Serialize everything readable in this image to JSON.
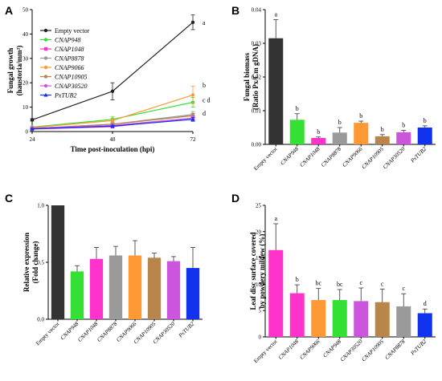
{
  "chart_data": [
    {
      "panel": "A",
      "type": "line",
      "xlabel": "Time post-inoculation (hpi)",
      "ylabel_lines": [
        "Fungal growth",
        "(haustoria/mm²)"
      ],
      "x": [
        24,
        48,
        72
      ],
      "x_ticks": [
        "24",
        "48",
        "72"
      ],
      "ylim": [
        0,
        50
      ],
      "y_ticks": [
        0,
        10,
        20,
        30,
        40,
        50
      ],
      "legend_position": "top-left",
      "series": [
        {
          "name": "Empty vector",
          "color": "#222222",
          "marker": "circle",
          "values": [
            4.8,
            16.5,
            44.8
          ],
          "errors": [
            0.5,
            3.5,
            3.0
          ],
          "italic": false
        },
        {
          "name": "CNAP948",
          "color": "#33e033",
          "marker": "circle",
          "values": [
            1.8,
            5.0,
            12.0
          ],
          "errors": [
            0.3,
            1.0,
            2.0
          ],
          "italic": true
        },
        {
          "name": "CNAP1048",
          "color": "#ff33cc",
          "marker": "square",
          "values": [
            1.0,
            2.0,
            5.5
          ],
          "errors": [
            0.2,
            0.4,
            0.8
          ],
          "italic": true
        },
        {
          "name": "CNAP8878",
          "color": "#9a9a9a",
          "marker": "circle",
          "values": [
            1.3,
            3.0,
            7.0
          ],
          "errors": [
            0.2,
            0.5,
            1.2
          ],
          "italic": true
        },
        {
          "name": "CNAP9066",
          "color": "#ff9933",
          "marker": "circle",
          "values": [
            1.6,
            4.5,
            15.0
          ],
          "errors": [
            0.3,
            0.8,
            3.5
          ],
          "italic": true
        },
        {
          "name": "CNAP10905",
          "color": "#b8864b",
          "marker": "circle",
          "values": [
            1.2,
            3.0,
            6.5
          ],
          "errors": [
            0.2,
            0.5,
            1.0
          ],
          "italic": true
        },
        {
          "name": "CNAP30520",
          "color": "#cc55dd",
          "marker": "circle",
          "values": [
            1.4,
            2.5,
            5.5
          ],
          "errors": [
            0.2,
            0.5,
            1.0
          ],
          "italic": true
        },
        {
          "name": "PxTUB2",
          "color": "#1133ee",
          "marker": "triangle",
          "values": [
            1.1,
            2.2,
            5.0
          ],
          "errors": [
            0.2,
            0.4,
            0.8
          ],
          "italic": true
        }
      ],
      "significance": [
        {
          "label": "a",
          "x": 72,
          "y": 44.8
        },
        {
          "label": "b",
          "x": 72,
          "y": 19.0
        },
        {
          "label": "c d",
          "x": 72,
          "y": 13.0
        },
        {
          "label": "d",
          "x": 72,
          "y": 7.5
        }
      ]
    },
    {
      "panel": "B",
      "type": "bar",
      "ylabel_lines": [
        "Fungal biomass",
        "(Ratio Px/Cm gDNA)"
      ],
      "ylim": [
        0,
        0.04
      ],
      "y_ticks": [
        "0.00",
        "0.01",
        "0.02",
        "0.03",
        "0.04"
      ],
      "categories": [
        "Empty vector",
        "CNAP948",
        "CNAP1048",
        "CNAP8878",
        "CNAP9066",
        "CNAP10905",
        "CNAP30520",
        "PxTUB2"
      ],
      "italic": [
        false,
        true,
        true,
        true,
        true,
        true,
        true,
        true
      ],
      "values": [
        0.0315,
        0.0073,
        0.0019,
        0.0035,
        0.0064,
        0.0024,
        0.0036,
        0.005
      ],
      "errors": [
        0.0055,
        0.0018,
        0.0003,
        0.0015,
        0.0005,
        0.0005,
        0.0006,
        0.0005
      ],
      "colors": [
        "#333333",
        "#33e033",
        "#ff33cc",
        "#9a9a9a",
        "#ff9933",
        "#b8864b",
        "#cc55dd",
        "#1133ee"
      ],
      "significance": [
        "a",
        "b",
        "b",
        "b",
        "b",
        "b",
        "b",
        "b"
      ]
    },
    {
      "panel": "C",
      "type": "bar",
      "ylabel_lines": [
        "Relative expression",
        "(Fold change)"
      ],
      "ylim": [
        0,
        1.0
      ],
      "y_ticks": [
        "0.0",
        "0.5",
        "1.0"
      ],
      "categories": [
        "Empty vector",
        "CNAP948",
        "CNAP1048",
        "CNAP8878",
        "CNAP9066",
        "CNAP10905",
        "CNAP30520",
        "PxTUB2"
      ],
      "italic": [
        false,
        true,
        true,
        true,
        true,
        true,
        true,
        true
      ],
      "values": [
        1.0,
        0.42,
        0.53,
        0.56,
        0.56,
        0.54,
        0.51,
        0.45
      ],
      "errors": [
        0.0,
        0.05,
        0.1,
        0.08,
        0.13,
        0.04,
        0.04,
        0.18
      ],
      "colors": [
        "#333333",
        "#33e033",
        "#ff33cc",
        "#9a9a9a",
        "#ff9933",
        "#b8864b",
        "#cc55dd",
        "#1133ee"
      ],
      "significance": []
    },
    {
      "panel": "D",
      "type": "bar",
      "ylabel_lines": [
        "Leaf disc surface covered",
        "by powdery mildew (%)"
      ],
      "ylim": [
        0,
        25
      ],
      "y_ticks": [
        "0",
        "5",
        "10",
        "15",
        "20",
        "25"
      ],
      "categories": [
        "Empty vector",
        "CNAP1048",
        "CNAP9066",
        "CNAP948",
        "CNAP30520",
        "CNAP10905",
        "CNAP8878",
        "PxTUB2"
      ],
      "italic": [
        false,
        true,
        true,
        true,
        true,
        true,
        true,
        true
      ],
      "values": [
        16.5,
        8.3,
        7.0,
        7.0,
        6.8,
        6.6,
        5.8,
        4.5
      ],
      "errors": [
        5.0,
        1.6,
        2.2,
        2.0,
        2.5,
        2.5,
        2.4,
        0.8
      ],
      "colors": [
        "#ff33cc",
        "#ff33cc",
        "#ff9933",
        "#33e033",
        "#cc55dd",
        "#b8864b",
        "#9a9a9a",
        "#1133ee"
      ],
      "significance": [
        "a",
        "b",
        "bc",
        "bc",
        "c",
        "c",
        "c",
        "d"
      ]
    }
  ]
}
